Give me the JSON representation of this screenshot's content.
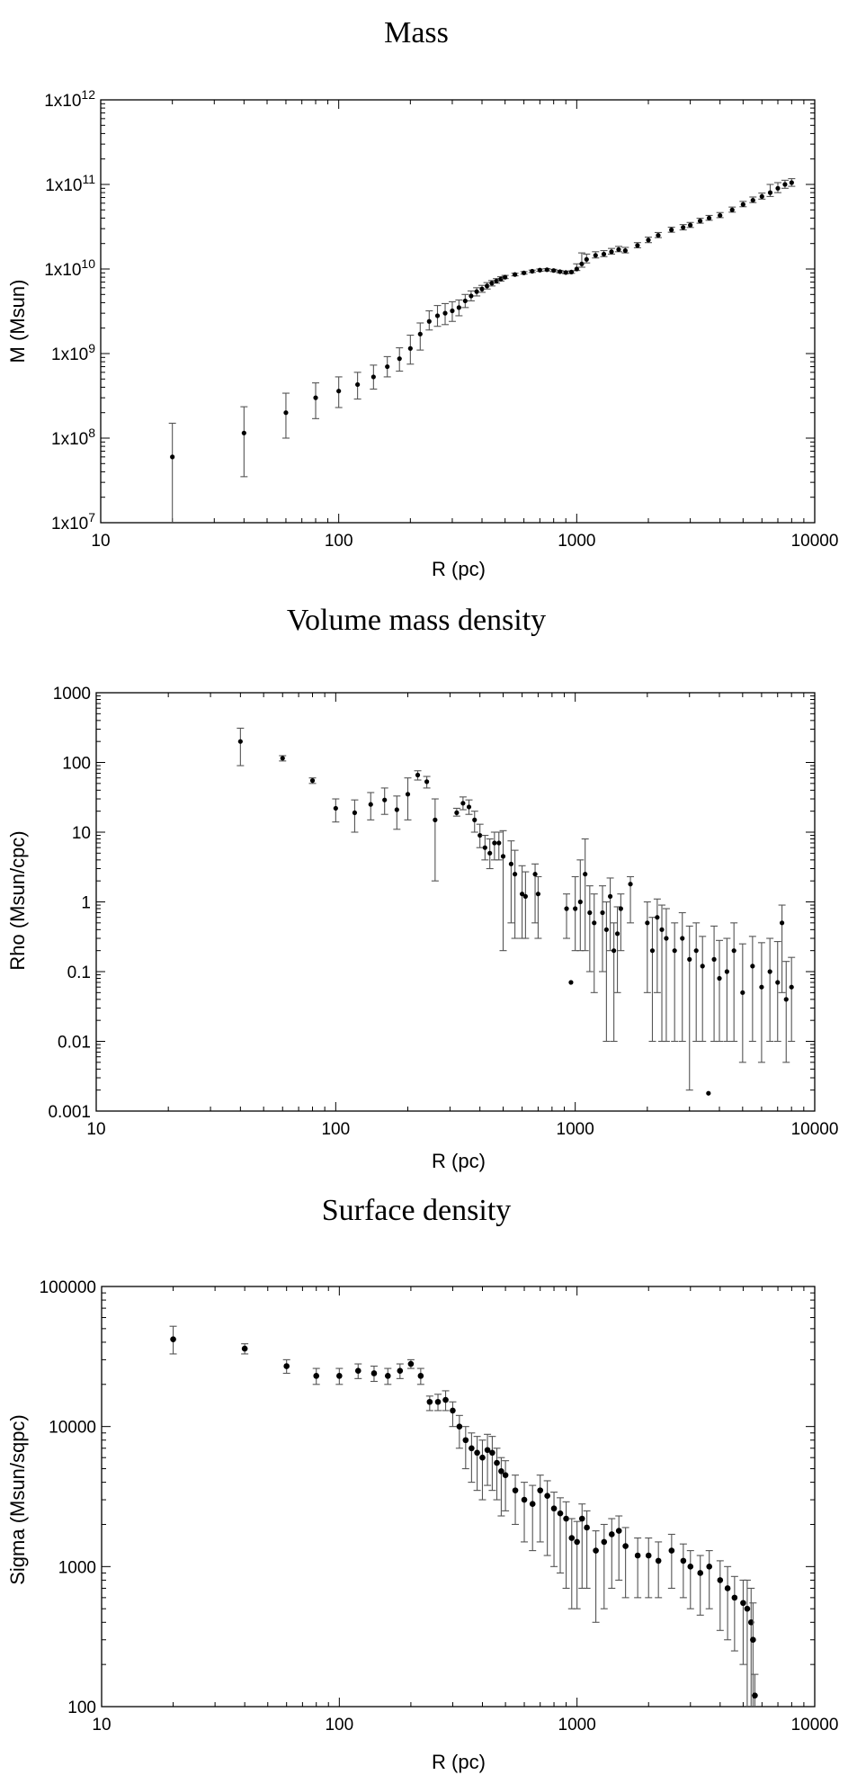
{
  "chart_data": [
    {
      "id": "mass",
      "type": "scatter",
      "title": "Mass",
      "xlabel": "R (pc)",
      "ylabel": "M (Msun)",
      "xscale": "log",
      "yscale": "log",
      "xlim": [
        10,
        10000
      ],
      "ylim": [
        10000000,
        1000000000000
      ],
      "xticks": [
        "10",
        "100",
        "1000",
        "10000"
      ],
      "yticks": [
        "1x10^7",
        "1x10^8",
        "1x10^9",
        "1x10^10",
        "1x10^11",
        "1x10^12"
      ],
      "x": [
        20,
        40,
        60,
        80,
        100,
        120,
        140,
        160,
        180,
        200,
        220,
        240,
        260,
        280,
        300,
        320,
        340,
        360,
        380,
        400,
        420,
        440,
        460,
        480,
        500,
        550,
        600,
        650,
        700,
        750,
        800,
        850,
        900,
        950,
        1000,
        1050,
        1100,
        1200,
        1300,
        1400,
        1500,
        1600,
        1800,
        2000,
        2200,
        2500,
        2800,
        3000,
        3300,
        3600,
        4000,
        4500,
        5000,
        5500,
        6000,
        6500,
        7000,
        7500,
        8000
      ],
      "y": [
        60000000,
        115000000,
        200000000,
        300000000,
        360000000,
        430000000,
        530000000,
        700000000,
        870000000,
        1150000000,
        1700000000,
        2400000000,
        2800000000,
        3000000000,
        3200000000,
        3500000000,
        4200000000,
        4800000000,
        5400000000,
        5800000000,
        6300000000,
        6800000000,
        7200000000,
        7600000000,
        8000000000,
        8600000000,
        9000000000,
        9400000000,
        9700000000,
        9800000000,
        9600000000,
        9300000000,
        9100000000,
        9200000000,
        10000000000,
        11500000000,
        13000000000,
        14500000000,
        15000000000,
        16000000000,
        17000000000,
        16500000000,
        19000000000,
        22000000000,
        25000000000,
        29000000000,
        31000000000,
        33000000000,
        37000000000,
        40000000000,
        43000000000,
        50000000000,
        58000000000,
        65000000000,
        72000000000,
        80000000000,
        90000000000,
        100000000000,
        105000000000
      ],
      "yerr_lo": [
        50000000,
        80000000,
        100000000,
        130000000,
        130000000,
        140000000,
        150000000,
        170000000,
        250000000,
        400000000,
        600000000,
        500000000,
        700000000,
        800000000,
        800000000,
        700000000,
        700000000,
        600000000,
        600000000,
        500000000,
        500000000,
        500000000,
        400000000,
        400000000,
        300000000,
        300000000,
        300000000,
        300000000,
        300000000,
        300000000,
        300000000,
        300000000,
        300000000,
        300000000,
        400000000,
        1000000000,
        1200000000,
        1000000000,
        1000000000,
        1000000000,
        1000000000,
        1000000000,
        1200000000,
        1500000000,
        1500000000,
        1800000000,
        2000000000,
        2000000000,
        2200000000,
        2300000000,
        2500000000,
        3000000000,
        3500000000,
        4000000000,
        5000000000,
        8000000000,
        10000000000,
        10000000000,
        10000000000
      ],
      "yerr_hi": [
        90000000,
        120000000,
        140000000,
        150000000,
        170000000,
        170000000,
        200000000,
        220000000,
        300000000,
        500000000,
        600000000,
        800000000,
        900000000,
        900000000,
        900000000,
        800000000,
        800000000,
        700000000,
        600000000,
        600000000,
        600000000,
        500000000,
        500000000,
        500000000,
        400000000,
        300000000,
        300000000,
        300000000,
        300000000,
        300000000,
        300000000,
        300000000,
        300000000,
        300000000,
        1500000000,
        4000000000,
        2000000000,
        1500000000,
        1500000000,
        1500000000,
        1500000000,
        1500000000,
        1500000000,
        1800000000,
        2000000000,
        2200000000,
        2500000000,
        2500000000,
        2800000000,
        3000000000,
        3500000000,
        4000000000,
        5000000000,
        6000000000,
        7000000000,
        20000000000,
        15000000000,
        12000000000,
        12000000000
      ]
    },
    {
      "id": "rho",
      "type": "scatter",
      "title": "Volume mass density",
      "xlabel": "R (pc)",
      "ylabel": "Rho (Msun/cpc)",
      "xscale": "log",
      "yscale": "log",
      "xlim": [
        10,
        10000
      ],
      "ylim": [
        0.001,
        1000
      ],
      "xticks": [
        "10",
        "100",
        "1000",
        "10000"
      ],
      "yticks": [
        "0.001",
        "0.01",
        "0.1",
        "1",
        "10",
        "100",
        "1000"
      ],
      "x": [
        40,
        60,
        80,
        100,
        120,
        140,
        160,
        180,
        200,
        220,
        240,
        260,
        320,
        340,
        360,
        380,
        400,
        420,
        440,
        460,
        480,
        500,
        540,
        560,
        600,
        620,
        680,
        700,
        920,
        960,
        1000,
        1050,
        1100,
        1150,
        1200,
        1300,
        1350,
        1400,
        1450,
        1500,
        1550,
        1700,
        2000,
        2100,
        2200,
        2300,
        2400,
        2600,
        2800,
        3000,
        3200,
        3400,
        3600,
        3800,
        4000,
        4300,
        4600,
        5000,
        5500,
        6000,
        6500,
        7000,
        7300,
        7600,
        8000
      ],
      "y": [
        200,
        115,
        55,
        22,
        19,
        25,
        29,
        21,
        35,
        66,
        53,
        15,
        19,
        26,
        23,
        15,
        9,
        6,
        5,
        7,
        7,
        4.5,
        3.5,
        2.5,
        1.3,
        1.2,
        2.5,
        1.3,
        0.8,
        0.07,
        0.8,
        1,
        2.5,
        0.7,
        0.5,
        0.7,
        0.4,
        1.2,
        0.2,
        0.35,
        0.8,
        1.8,
        0.5,
        0.2,
        0.6,
        0.4,
        0.3,
        0.2,
        0.3,
        0.15,
        0.2,
        0.12,
        0.0018,
        0.15,
        0.08,
        0.1,
        0.2,
        0.05,
        0.12,
        0.06,
        0.1,
        0.07,
        0.5,
        0.04,
        0.06
      ],
      "yerr_lo": [
        110,
        10,
        5,
        8,
        9,
        10,
        11,
        10,
        20,
        10,
        10,
        13,
        2,
        5,
        5,
        5,
        3,
        2,
        2,
        3,
        3,
        4.3,
        3,
        2.2,
        1,
        0.9,
        2,
        1,
        0.5,
        0,
        0.6,
        0.8,
        2.3,
        0.6,
        0.45,
        0.6,
        0.39,
        1,
        0.19,
        0.3,
        0.6,
        1.3,
        0.45,
        0.19,
        0.55,
        0.39,
        0.29,
        0.19,
        0.29,
        0.148,
        0.19,
        0.11,
        0,
        0.14,
        0.07,
        0.09,
        0.19,
        0.045,
        0.11,
        0.055,
        0.09,
        0.06,
        0.45,
        0.035,
        0.05
      ],
      "yerr_hi": [
        110,
        10,
        5,
        8,
        10,
        12,
        14,
        12,
        25,
        10,
        10,
        15,
        3,
        6,
        6,
        5,
        4,
        3,
        3,
        3,
        3,
        6,
        4,
        3,
        2,
        1.5,
        1,
        1,
        0.5,
        0,
        1.5,
        3,
        5.5,
        1,
        0.8,
        1,
        0.6,
        1,
        0.3,
        0.5,
        0.5,
        0.5,
        0.5,
        0.4,
        0.5,
        0.5,
        0.5,
        0.3,
        0.4,
        0.3,
        0.3,
        0.2,
        0,
        0.3,
        0.2,
        0.2,
        0.3,
        0.2,
        0.2,
        0.2,
        0.2,
        0.2,
        0.4,
        0.1,
        0.1
      ]
    },
    {
      "id": "sigma",
      "type": "scatter",
      "title": "Surface density",
      "xlabel": "R (pc)",
      "ylabel": "Sigma (Msun/sqpc)",
      "xscale": "log",
      "yscale": "log",
      "xlim": [
        10,
        10000
      ],
      "ylim": [
        100,
        100000
      ],
      "xticks": [
        "10",
        "100",
        "1000",
        "10000"
      ],
      "yticks": [
        "100",
        "1000",
        "10000",
        "100000"
      ],
      "x": [
        20,
        40,
        60,
        80,
        100,
        120,
        140,
        160,
        180,
        200,
        220,
        240,
        260,
        280,
        300,
        320,
        340,
        360,
        380,
        400,
        420,
        440,
        460,
        480,
        500,
        550,
        600,
        650,
        700,
        750,
        800,
        850,
        900,
        950,
        1000,
        1050,
        1100,
        1200,
        1300,
        1400,
        1500,
        1600,
        1800,
        2000,
        2200,
        2500,
        2800,
        3000,
        3300,
        3600,
        4000,
        4300,
        4600,
        5000,
        5200,
        5400,
        5500,
        5600
      ],
      "y": [
        42000,
        36000,
        27000,
        23000,
        23000,
        25000,
        24000,
        23000,
        25000,
        28000,
        23000,
        15000,
        15000,
        15500,
        13000,
        10000,
        8000,
        7000,
        6500,
        6000,
        6800,
        6500,
        5500,
        4800,
        4500,
        3500,
        3000,
        2800,
        3500,
        3200,
        2600,
        2400,
        2200,
        1600,
        1500,
        2200,
        1900,
        1300,
        1500,
        1700,
        1800,
        1400,
        1200,
        1200,
        1100,
        1300,
        1100,
        1000,
        900,
        1000,
        800,
        700,
        600,
        550,
        500,
        400,
        300,
        120
      ],
      "yerr_lo": [
        9000,
        3000,
        3000,
        3000,
        3000,
        3000,
        3000,
        3000,
        3000,
        2000,
        3000,
        2000,
        2000,
        2500,
        3000,
        3000,
        3000,
        3000,
        3000,
        3000,
        3000,
        3000,
        2500,
        2500,
        2000,
        1500,
        1500,
        1500,
        2000,
        2000,
        1600,
        1500,
        1500,
        1100,
        1000,
        1500,
        1200,
        900,
        1000,
        1000,
        1000,
        800,
        600,
        600,
        500,
        600,
        500,
        500,
        450,
        500,
        450,
        400,
        350,
        350,
        400,
        300,
        290,
        110
      ],
      "yerr_hi": [
        10000,
        3000,
        3000,
        3000,
        3000,
        3000,
        3000,
        3000,
        3000,
        2000,
        3000,
        1500,
        2000,
        2500,
        2000,
        2000,
        2000,
        2000,
        2000,
        2000,
        2000,
        2000,
        1500,
        1200,
        1200,
        1000,
        1000,
        1000,
        1000,
        900,
        800,
        700,
        700,
        600,
        600,
        600,
        600,
        500,
        500,
        500,
        500,
        500,
        400,
        400,
        400,
        400,
        350,
        300,
        300,
        300,
        300,
        300,
        250,
        250,
        300,
        300,
        250,
        50
      ]
    }
  ]
}
